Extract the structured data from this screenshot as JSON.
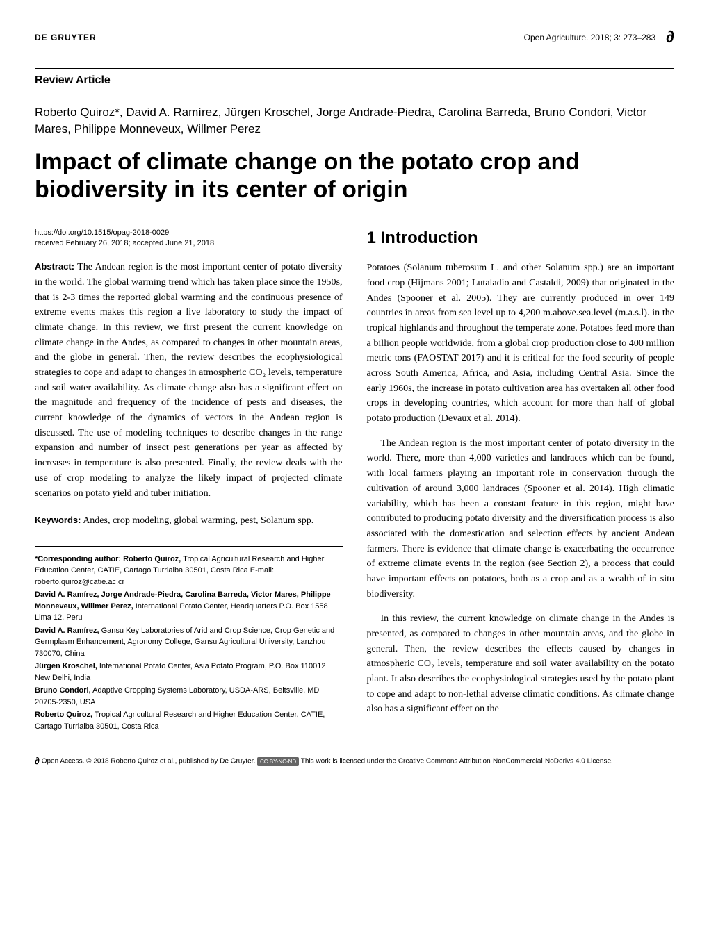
{
  "header": {
    "publisher": "DE GRUYTER",
    "journal": "Open Agriculture. 2018; 3: 273–283",
    "open_access_symbol": "∂"
  },
  "article_type": "Review Article",
  "authors": "Roberto Quiroz*, David A. Ramírez, Jürgen Kroschel, Jorge Andrade-Piedra, Carolina Barreda, Bruno Condori, Victor Mares, Philippe Monneveux, Willmer Perez",
  "title": "Impact of climate change on the potato crop and biodiversity in its center of origin",
  "doi": "https://doi.org/10.1515/opag-2018-0029",
  "dates": "received February 26, 2018; accepted June 21, 2018",
  "abstract_label": "Abstract:",
  "abstract_text": " The Andean region is the most important center of potato diversity in the world. The global warming trend which has taken place since the 1950s, that is 2-3 times the reported global warming and the continuous presence of extreme events makes this region a live laboratory to study the impact of climate change. In this review, we first present the current knowledge on climate change in the Andes, as compared to changes in other mountain areas, and the globe in general. Then, the review describes the ecophysiological strategies to cope and adapt to changes in atmospheric CO₂ levels, temperature and soil water availability. As climate change also has a significant effect on the magnitude and frequency of the incidence of pests and diseases, the current knowledge of the dynamics of vectors in the Andean region is discussed. The use of modeling techniques to describe changes in the range expansion and number of insect pest generations per year as affected by increases in temperature is also presented. Finally, the review deals with the use of crop modeling to analyze the likely impact of projected climate scenarios on potato yield and tuber initiation.",
  "keywords_label": "Keywords:",
  "keywords_text": " Andes, crop modeling, global warming, pest, Solanum spp.",
  "affiliations": [
    {
      "name": "*Corresponding author: Roberto Quiroz,",
      "text": " Tropical Agricultural Research and Higher Education Center, CATIE, Cartago Turrialba 30501, Costa Rica E-mail: roberto.quiroz@catie.ac.cr"
    },
    {
      "name": "David A. Ramírez, Jorge Andrade-Piedra, Carolina Barreda, Victor Mares, Philippe Monneveux, Willmer Perez,",
      "text": " International Potato Center, Headquarters P.O. Box 1558 Lima 12, Peru"
    },
    {
      "name": "David A. Ramírez,",
      "text": " Gansu Key Laboratories of Arid and Crop Science, Crop Genetic and Germplasm Enhancement, Agronomy College, Gansu Agricultural University, Lanzhou 730070, China"
    },
    {
      "name": "Jürgen Kroschel,",
      "text": " International Potato Center, Asia Potato Program, P.O. Box 110012 New Delhi, India"
    },
    {
      "name": "Bruno Condori,",
      "text": " Adaptive Cropping Systems Laboratory, USDA-ARS, Beltsville, MD 20705-2350, USA"
    },
    {
      "name": "Roberto Quiroz,",
      "text": " Tropical Agricultural Research and Higher Education Center, CATIE, Cartago Turrialba 30501, Costa Rica"
    }
  ],
  "section_heading": "1 Introduction",
  "intro_paragraphs": [
    "Potatoes (Solanum tuberosum L. and other Solanum spp.) are an important food crop (Hijmans 2001; Lutaladio and Castaldi, 2009) that originated in the Andes (Spooner et al. 2005). They are currently produced in over 149 countries in areas from sea level up to 4,200 m.above.sea.level (m.a.s.l). in the tropical highlands and throughout the temperate zone. Potatoes feed more than a billion people worldwide, from a global crop production close to 400 million metric tons (FAOSTAT 2017) and it is critical for the food security of people across South America, Africa, and Asia, including Central Asia. Since the early 1960s, the increase in potato cultivation area has overtaken all other food crops in developing countries, which account for more than half of global potato production (Devaux et al. 2014).",
    "The Andean region is the most important center of potato diversity in the world. There, more than 4,000 varieties and landraces which can be found, with local farmers playing an important role in conservation through the cultivation of around 3,000 landraces (Spooner et al. 2014). High climatic variability, which has been a constant feature in this region, might have contributed to producing potato diversity and the diversification process is also associated with the domestication and selection effects by ancient Andean farmers. There is evidence that climate change is exacerbating the occurrence of extreme climate events in the region (see Section 2), a process that could have important effects on potatoes, both as a crop and as a wealth of in situ biodiversity.",
    "In this review, the current knowledge on climate change in the Andes is presented, as compared to changes in other mountain areas, and the globe in general. Then, the review describes the effects caused by changes in atmospheric CO₂ levels, temperature and soil water availability on the potato plant. It also describes the ecophysiological strategies used by the potato plant to cope and adapt to non-lethal adverse climatic conditions. As climate change also has a significant effect on the"
  ],
  "footer": {
    "oa_symbol": "∂",
    "text_1": " Open Access. © 2018 Roberto Quiroz et al., published by De Gruyter. ",
    "cc_badge": "CC BY-NC-ND",
    "text_2": " This work is licensed under the Creative Commons Attribution-NonCommercial-NoDerivs 4.0 License."
  }
}
